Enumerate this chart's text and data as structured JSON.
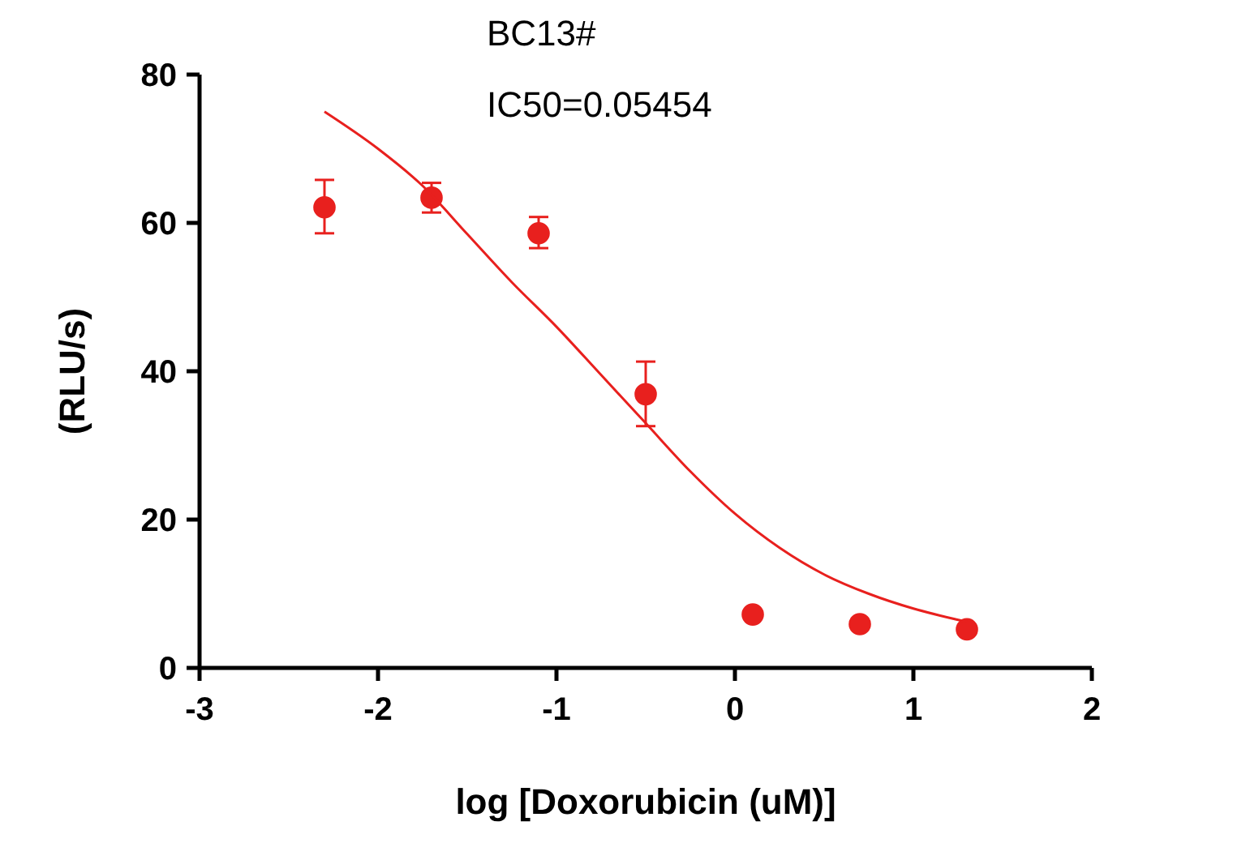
{
  "chart_data": {
    "type": "scatter",
    "xlabel": "log [Doxorubicin (uM)]",
    "ylabel": "(RLU/s)",
    "annotations": [
      "BC13#",
      "IC50=0.05454"
    ],
    "xlim": [
      -3,
      2
    ],
    "xticks": [
      -3,
      -2,
      -1,
      0,
      1,
      2
    ],
    "ylim": [
      0,
      80
    ],
    "yticks": [
      0,
      20,
      40,
      60,
      80
    ],
    "grid": false,
    "series": [
      {
        "color": "#e8201e",
        "marker": "circle",
        "x": [
          -2.3,
          -1.7,
          -1.1,
          -0.5,
          0.1,
          0.7,
          1.3
        ],
        "values": [
          62.1,
          63.4,
          58.6,
          36.9,
          7.2,
          5.9,
          5.2
        ],
        "errors": [
          [
            58.6,
            65.8
          ],
          [
            61.4,
            65.4
          ],
          [
            56.6,
            60.8
          ],
          [
            32.6,
            41.3
          ],
          null,
          null,
          null
        ]
      },
      {
        "type": "line",
        "color": "#e8201e",
        "marker": "none",
        "x": [
          -2.3,
          -2,
          -1.75,
          -1.5,
          -1.25,
          -1,
          -0.75,
          -0.5,
          -0.25,
          0,
          0.25,
          0.5,
          0.75,
          1,
          1.3
        ],
        "values": [
          75,
          70,
          65,
          58.5,
          52,
          46,
          39.5,
          33,
          26.5,
          20.8,
          16.2,
          12.6,
          10,
          8,
          6.2
        ]
      }
    ]
  }
}
